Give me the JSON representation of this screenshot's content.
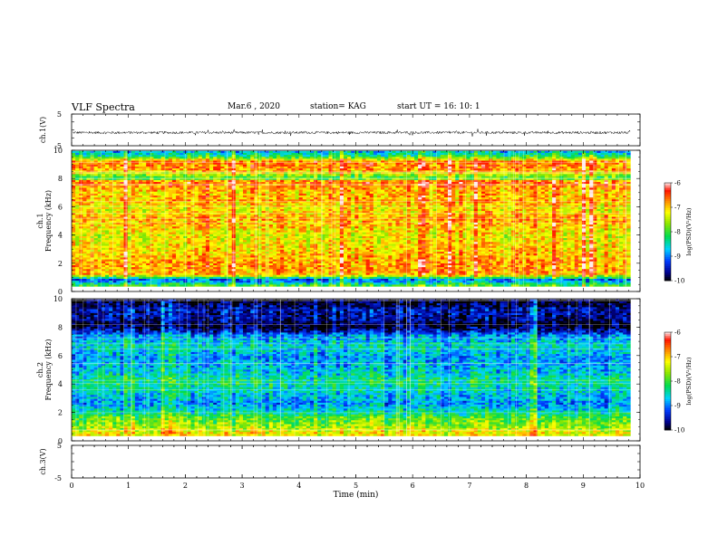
{
  "header": {
    "title": "VLF Spectra",
    "date": "Mar.6  , 2020",
    "station": "station= KAG",
    "start": "start  UT =   16: 10: 1"
  },
  "chart_data": [
    {
      "type": "line",
      "name": "ch1-waveform",
      "ylabel": "ch.1(V)",
      "ylim": [
        -5,
        5
      ],
      "yticks": [
        "5",
        "-5"
      ],
      "x_range": [
        0,
        10
      ],
      "signal": "noise-around-zero",
      "amplitude": 0.4,
      "data_end": 9.83
    },
    {
      "type": "heatmap",
      "name": "ch1-spectrogram",
      "ylabel_line1": "ch.1",
      "ylabel_line2": "Frequency (kHz)",
      "ylim": [
        0,
        10
      ],
      "yticks": [
        "0",
        "2",
        "4",
        "6",
        "8",
        "10"
      ],
      "x_range": [
        0,
        10
      ],
      "data_end": 9.83,
      "colorbar": {
        "label": "log(PSD)(V²/Hz)",
        "range": [
          -10,
          -6
        ],
        "ticks": [
          "-6",
          "-7",
          "-8",
          "-9",
          "-10"
        ]
      },
      "band_profile_log_psd": [
        [
          0.0,
          -8.2
        ],
        [
          0.4,
          -7.9
        ],
        [
          0.8,
          -9.2
        ],
        [
          1.2,
          -6.9
        ],
        [
          2.0,
          -6.8
        ],
        [
          2.6,
          -7.0
        ],
        [
          3.2,
          -7.1
        ],
        [
          4.0,
          -7.3
        ],
        [
          4.6,
          -7.0
        ],
        [
          5.2,
          -6.9
        ],
        [
          5.8,
          -7.2
        ],
        [
          6.4,
          -6.9
        ],
        [
          7.0,
          -7.0
        ],
        [
          7.8,
          -6.6
        ],
        [
          8.0,
          -8.1
        ],
        [
          8.6,
          -6.8
        ],
        [
          9.2,
          -6.7
        ],
        [
          9.6,
          -8.3
        ],
        [
          10.0,
          -8.9
        ]
      ]
    },
    {
      "type": "heatmap",
      "name": "ch2-spectrogram",
      "ylabel_line1": "ch.2",
      "ylabel_line2": "Frequency (kHz)",
      "ylim": [
        0,
        10
      ],
      "yticks": [
        "0",
        "2",
        "4",
        "6",
        "8",
        "10"
      ],
      "x_range": [
        0,
        10
      ],
      "data_end": 9.83,
      "colorbar": {
        "label": "log(PSD)(V²/Hz)",
        "range": [
          -10,
          -6
        ],
        "ticks": [
          "-6",
          "-7",
          "-8",
          "-9",
          "-10"
        ]
      },
      "band_profile_log_psd": [
        [
          0.0,
          -7.3
        ],
        [
          0.6,
          -7.2
        ],
        [
          1.0,
          -7.6
        ],
        [
          1.6,
          -7.9
        ],
        [
          2.0,
          -8.4
        ],
        [
          2.6,
          -8.9
        ],
        [
          3.4,
          -8.6
        ],
        [
          4.2,
          -8.3
        ],
        [
          5.0,
          -8.7
        ],
        [
          5.8,
          -8.9
        ],
        [
          6.6,
          -8.5
        ],
        [
          7.4,
          -8.9
        ],
        [
          7.9,
          -9.8
        ],
        [
          8.2,
          -9.9
        ],
        [
          8.6,
          -9.6
        ],
        [
          9.2,
          -9.5
        ],
        [
          9.7,
          -9.9
        ],
        [
          10.0,
          -10.0
        ]
      ]
    },
    {
      "type": "line",
      "name": "ch3-waveform",
      "ylabel": "ch.3(V)",
      "ylim": [
        -5,
        5
      ],
      "yticks": [
        "5",
        "-5"
      ],
      "x_range": [
        0,
        10
      ],
      "signal": "none"
    }
  ],
  "xaxis": {
    "label": "Time  (min)",
    "range": [
      0,
      10
    ],
    "ticks": [
      "0",
      "1",
      "2",
      "3",
      "4",
      "5",
      "6",
      "7",
      "8",
      "9",
      "10"
    ]
  }
}
